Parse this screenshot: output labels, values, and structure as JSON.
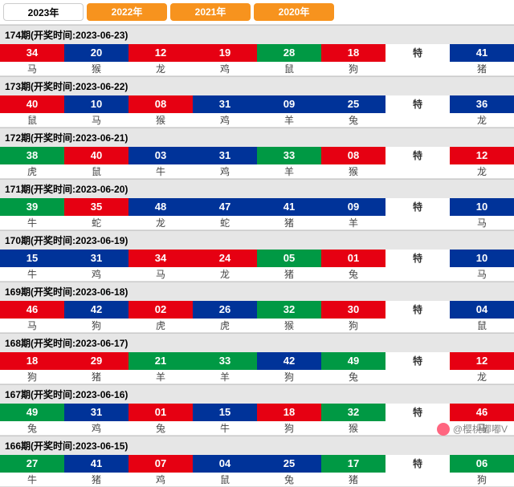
{
  "tabs": [
    "2023年",
    "2022年",
    "2021年",
    "2020年"
  ],
  "activeTabIndex": 0,
  "teLabel": "特",
  "watermark": "@樱桃嘟嘟V",
  "colors": {
    "red": "#e60012",
    "blue": "#003399",
    "green": "#009944",
    "tabOther": "#f7931e"
  },
  "draws": [
    {
      "issue": "174期",
      "date": "2023-06-23",
      "nums": [
        {
          "n": "34",
          "c": "red"
        },
        {
          "n": "20",
          "c": "blue"
        },
        {
          "n": "12",
          "c": "red"
        },
        {
          "n": "19",
          "c": "red"
        },
        {
          "n": "28",
          "c": "green"
        },
        {
          "n": "18",
          "c": "red"
        }
      ],
      "special": {
        "n": "41",
        "c": "blue"
      },
      "zods": [
        "马",
        "猴",
        "龙",
        "鸡",
        "鼠",
        "狗"
      ],
      "zspecial": "猪"
    },
    {
      "issue": "173期",
      "date": "2023-06-22",
      "nums": [
        {
          "n": "40",
          "c": "red"
        },
        {
          "n": "10",
          "c": "blue"
        },
        {
          "n": "08",
          "c": "red"
        },
        {
          "n": "31",
          "c": "blue"
        },
        {
          "n": "09",
          "c": "blue"
        },
        {
          "n": "25",
          "c": "blue"
        }
      ],
      "special": {
        "n": "36",
        "c": "blue"
      },
      "zods": [
        "鼠",
        "马",
        "猴",
        "鸡",
        "羊",
        "兔"
      ],
      "zspecial": "龙"
    },
    {
      "issue": "172期",
      "date": "2023-06-21",
      "nums": [
        {
          "n": "38",
          "c": "green"
        },
        {
          "n": "40",
          "c": "red"
        },
        {
          "n": "03",
          "c": "blue"
        },
        {
          "n": "31",
          "c": "blue"
        },
        {
          "n": "33",
          "c": "green"
        },
        {
          "n": "08",
          "c": "red"
        }
      ],
      "special": {
        "n": "12",
        "c": "red"
      },
      "zods": [
        "虎",
        "鼠",
        "牛",
        "鸡",
        "羊",
        "猴"
      ],
      "zspecial": "龙"
    },
    {
      "issue": "171期",
      "date": "2023-06-20",
      "nums": [
        {
          "n": "39",
          "c": "green"
        },
        {
          "n": "35",
          "c": "red"
        },
        {
          "n": "48",
          "c": "blue"
        },
        {
          "n": "47",
          "c": "blue"
        },
        {
          "n": "41",
          "c": "blue"
        },
        {
          "n": "09",
          "c": "blue"
        }
      ],
      "special": {
        "n": "10",
        "c": "blue"
      },
      "zods": [
        "牛",
        "蛇",
        "龙",
        "蛇",
        "猪",
        "羊"
      ],
      "zspecial": "马"
    },
    {
      "issue": "170期",
      "date": "2023-06-19",
      "nums": [
        {
          "n": "15",
          "c": "blue"
        },
        {
          "n": "31",
          "c": "blue"
        },
        {
          "n": "34",
          "c": "red"
        },
        {
          "n": "24",
          "c": "red"
        },
        {
          "n": "05",
          "c": "green"
        },
        {
          "n": "01",
          "c": "red"
        }
      ],
      "special": {
        "n": "10",
        "c": "blue"
      },
      "zods": [
        "牛",
        "鸡",
        "马",
        "龙",
        "猪",
        "兔"
      ],
      "zspecial": "马"
    },
    {
      "issue": "169期",
      "date": "2023-06-18",
      "nums": [
        {
          "n": "46",
          "c": "red"
        },
        {
          "n": "42",
          "c": "blue"
        },
        {
          "n": "02",
          "c": "red"
        },
        {
          "n": "26",
          "c": "blue"
        },
        {
          "n": "32",
          "c": "green"
        },
        {
          "n": "30",
          "c": "red"
        }
      ],
      "special": {
        "n": "04",
        "c": "blue"
      },
      "zods": [
        "马",
        "狗",
        "虎",
        "虎",
        "猴",
        "狗"
      ],
      "zspecial": "鼠"
    },
    {
      "issue": "168期",
      "date": "2023-06-17",
      "nums": [
        {
          "n": "18",
          "c": "red"
        },
        {
          "n": "29",
          "c": "red"
        },
        {
          "n": "21",
          "c": "green"
        },
        {
          "n": "33",
          "c": "green"
        },
        {
          "n": "42",
          "c": "blue"
        },
        {
          "n": "49",
          "c": "green"
        }
      ],
      "special": {
        "n": "12",
        "c": "red"
      },
      "zods": [
        "狗",
        "猪",
        "羊",
        "羊",
        "狗",
        "兔"
      ],
      "zspecial": "龙"
    },
    {
      "issue": "167期",
      "date": "2023-06-16",
      "nums": [
        {
          "n": "49",
          "c": "green"
        },
        {
          "n": "31",
          "c": "blue"
        },
        {
          "n": "01",
          "c": "red"
        },
        {
          "n": "15",
          "c": "blue"
        },
        {
          "n": "18",
          "c": "red"
        },
        {
          "n": "32",
          "c": "green"
        }
      ],
      "special": {
        "n": "46",
        "c": "red"
      },
      "zods": [
        "兔",
        "鸡",
        "兔",
        "牛",
        "狗",
        "猴"
      ],
      "zspecial": "马"
    },
    {
      "issue": "166期",
      "date": "2023-06-15",
      "nums": [
        {
          "n": "27",
          "c": "green"
        },
        {
          "n": "41",
          "c": "blue"
        },
        {
          "n": "07",
          "c": "red"
        },
        {
          "n": "04",
          "c": "blue"
        },
        {
          "n": "25",
          "c": "blue"
        },
        {
          "n": "17",
          "c": "green"
        }
      ],
      "special": {
        "n": "06",
        "c": "green"
      },
      "zods": [
        "牛",
        "猪",
        "鸡",
        "鼠",
        "兔",
        "猪"
      ],
      "zspecial": "狗"
    }
  ]
}
